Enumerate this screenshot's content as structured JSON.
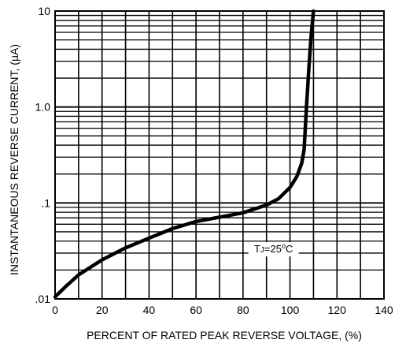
{
  "chart_data": {
    "type": "line",
    "title": "",
    "xlabel": "PERCENT OF RATED PEAK REVERSE VOLTAGE, (%)",
    "ylabel": "INSTANTANEOUS REVERSE CURRENT, (µA)",
    "xlim": [
      0,
      140
    ],
    "ylim": [
      0.01,
      10
    ],
    "y_scale": "log",
    "grid": true,
    "x_ticks": [
      0,
      20,
      40,
      60,
      80,
      100,
      120,
      140
    ],
    "x_tick_labels": [
      "0",
      "20",
      "40",
      "60",
      "80",
      "100",
      "120",
      "140"
    ],
    "y_ticks": [
      0.01,
      0.1,
      1,
      10
    ],
    "y_tick_labels": [
      ".01",
      ".1",
      "1.0",
      "10"
    ],
    "annotation": {
      "parts": [
        "T",
        "J",
        "=25",
        "o",
        "C"
      ],
      "x": 93,
      "y": 0.0335
    },
    "series": [
      {
        "x": [
          0,
          5,
          10,
          20,
          30,
          40,
          50,
          60,
          70,
          80,
          90,
          95,
          100,
          103,
          105,
          106,
          107,
          108,
          109,
          110
        ],
        "y": [
          0.0105,
          0.0138,
          0.0178,
          0.0255,
          0.034,
          0.043,
          0.054,
          0.064,
          0.071,
          0.079,
          0.095,
          0.11,
          0.145,
          0.19,
          0.26,
          0.36,
          1.0,
          2.5,
          5.5,
          10
        ]
      }
    ]
  }
}
